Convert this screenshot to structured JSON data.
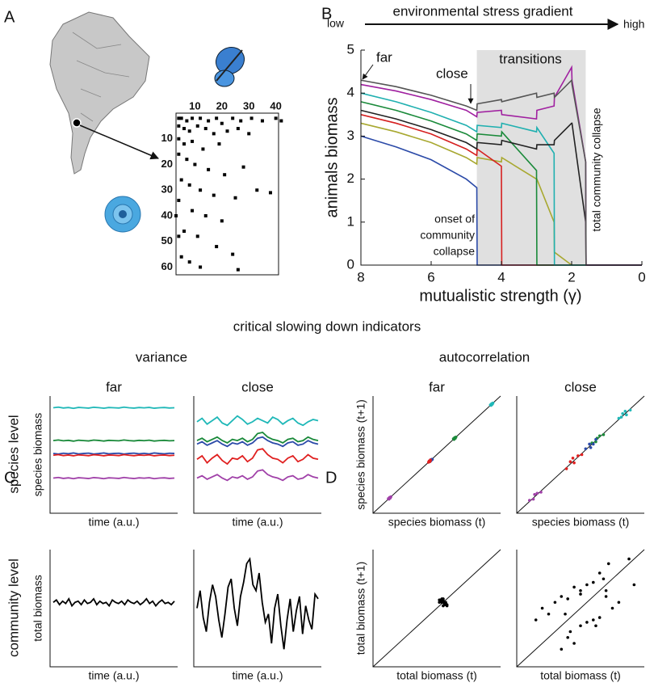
{
  "figure": {
    "panel_labels": [
      "A",
      "B",
      "C",
      "D"
    ],
    "heading": "critical slowing down indicators",
    "variance": "variance",
    "autocorrelation": "autocorrelation",
    "row_labels": [
      "species level",
      "community level"
    ]
  },
  "chart_data": [
    {
      "type": "matrix",
      "xlim": [
        3,
        41
      ],
      "ylim": [
        0,
        63
      ],
      "xticks": [
        10,
        20,
        30,
        40
      ],
      "yticks": [
        10,
        20,
        30,
        40,
        50,
        60
      ],
      "color": "#000",
      "x": [
        4,
        5,
        7,
        9,
        12,
        15,
        18,
        20,
        24,
        27,
        31,
        35,
        40,
        42,
        4,
        6,
        8,
        11,
        14,
        17,
        22,
        26,
        30,
        4,
        6,
        9,
        13,
        19,
        4,
        7,
        10,
        15,
        21,
        28,
        5,
        8,
        12,
        17,
        25,
        33,
        38,
        4,
        9,
        14,
        20,
        6,
        11,
        18,
        24,
        5,
        8,
        12,
        26,
        3,
        4
      ],
      "y": [
        2,
        2,
        3,
        2,
        2,
        3,
        2,
        4,
        2,
        3,
        2,
        3,
        2,
        3,
        5,
        6,
        7,
        5,
        6,
        8,
        7,
        6,
        8,
        10,
        12,
        11,
        14,
        12,
        16,
        18,
        20,
        22,
        24,
        21,
        26,
        28,
        30,
        32,
        33,
        30,
        31,
        34,
        38,
        40,
        42,
        46,
        48,
        52,
        55,
        56,
        58,
        60,
        61,
        40,
        48
      ]
    },
    {
      "type": "line",
      "xlabel": "mutualistic strength (γ)",
      "ylabel": "animals biomass",
      "xlim": [
        8,
        0
      ],
      "ylim": [
        0,
        5
      ],
      "xticks": [
        8,
        6,
        4,
        2,
        0
      ],
      "yticks": [
        0,
        1,
        2,
        3,
        4,
        5
      ],
      "shade": [
        4.7,
        1.6
      ],
      "gradient": {
        "label": "environmental stress gradient",
        "low": "low",
        "high": "high"
      },
      "annotations": {
        "far": "far",
        "close": "close",
        "transitions": "transitions",
        "onset": [
          "onset of",
          "community",
          "collapse"
        ],
        "total": "total community collapse"
      },
      "x": [
        8,
        7,
        6,
        5,
        4.7,
        4.69,
        4,
        3.99,
        3,
        2.99,
        2.5,
        2.49,
        2,
        1.99,
        1.6,
        1.59,
        0
      ],
      "series": [
        {
          "color": "#a8a830",
          "values": [
            3.3,
            3.1,
            2.85,
            2.5,
            2.35,
            2.5,
            2.4,
            2.5,
            2.0,
            2.0,
            1.0,
            0.3,
            0,
            0,
            0,
            0,
            0
          ]
        },
        {
          "color": "#2b4aa8",
          "values": [
            3.0,
            2.75,
            2.45,
            2.0,
            1.8,
            0,
            0,
            0,
            0,
            0,
            0,
            0,
            0,
            0,
            0,
            0,
            0
          ]
        },
        {
          "color": "#d62020",
          "values": [
            3.5,
            3.3,
            3.05,
            2.7,
            2.55,
            2.7,
            2.3,
            0,
            0,
            0,
            0,
            0,
            0,
            0,
            0,
            0,
            0
          ]
        },
        {
          "color": "#1a8a3a",
          "values": [
            3.8,
            3.6,
            3.35,
            3.05,
            2.9,
            3.05,
            3.0,
            3.1,
            2.2,
            0,
            0,
            0,
            0,
            0,
            0,
            0,
            0
          ]
        },
        {
          "color": "#20b0b0",
          "values": [
            4.0,
            3.8,
            3.55,
            3.25,
            3.1,
            3.25,
            3.2,
            3.3,
            3.1,
            3.2,
            2.6,
            0,
            0,
            0,
            0,
            0,
            0
          ]
        },
        {
          "color": "#222222",
          "values": [
            3.6,
            3.4,
            3.15,
            2.85,
            2.7,
            2.85,
            2.8,
            2.9,
            2.7,
            2.8,
            2.8,
            2.9,
            3.3,
            3.3,
            1.0,
            0,
            0
          ]
        },
        {
          "color": "#a020a0",
          "values": [
            4.2,
            4.05,
            3.85,
            3.6,
            3.45,
            3.55,
            3.6,
            3.5,
            3.4,
            3.6,
            3.7,
            3.9,
            4.6,
            4.3,
            2.4,
            0,
            0
          ]
        },
        {
          "color": "#555555",
          "values": [
            4.3,
            4.15,
            3.95,
            3.7,
            3.6,
            3.75,
            3.85,
            3.8,
            4.0,
            3.9,
            4.0,
            3.9,
            4.3,
            4.2,
            2.4,
            0,
            0
          ]
        }
      ]
    },
    {
      "type": "line",
      "title": "far",
      "xlabel": "time (a.u.)",
      "ylabel": "species biomass",
      "ylim": [
        0,
        10
      ],
      "series": [
        {
          "color": "#20b8b8",
          "values": [
            9.0,
            9.05,
            8.98,
            9.02,
            8.95,
            9.03,
            9.0,
            8.97,
            9.04,
            9.01,
            8.96,
            9.02,
            9.0,
            8.98,
            9.05,
            9.0,
            8.97,
            9.02,
            8.99,
            9.03,
            8.96,
            9.0,
            9.02,
            8.98,
            9.0
          ]
        },
        {
          "color": "#1a8a3a",
          "values": [
            6.2,
            6.25,
            6.18,
            6.22,
            6.15,
            6.23,
            6.2,
            6.17,
            6.24,
            6.21,
            6.16,
            6.22,
            6.2,
            6.18,
            6.25,
            6.2,
            6.17,
            6.22,
            6.19,
            6.23,
            6.16,
            6.2,
            6.22,
            6.18,
            6.2
          ]
        },
        {
          "color": "#2b4aa8",
          "values": [
            5.1,
            5.05,
            5.12,
            5.08,
            5.14,
            5.06,
            5.1,
            5.13,
            5.05,
            5.09,
            5.14,
            5.07,
            5.1,
            5.12,
            5.05,
            5.1,
            5.13,
            5.07,
            5.11,
            5.06,
            5.14,
            5.1,
            5.07,
            5.12,
            5.1
          ]
        },
        {
          "color": "#e02020",
          "values": [
            4.95,
            5.0,
            4.92,
            4.97,
            4.9,
            4.98,
            4.95,
            4.91,
            4.99,
            4.96,
            4.9,
            4.97,
            4.95,
            4.92,
            5.0,
            4.95,
            4.91,
            4.97,
            4.94,
            4.98,
            4.9,
            4.95,
            4.97,
            4.92,
            4.95
          ]
        },
        {
          "color": "#a040a8",
          "values": [
            3.0,
            3.05,
            2.97,
            3.02,
            2.95,
            3.03,
            3.0,
            2.96,
            3.04,
            3.01,
            2.95,
            3.02,
            3.0,
            2.97,
            3.05,
            3.0,
            2.96,
            3.02,
            2.99,
            3.03,
            2.95,
            3.0,
            3.02,
            2.97,
            3.0
          ]
        }
      ]
    },
    {
      "type": "line",
      "title": "close",
      "xlabel": "time (a.u.)",
      "ylim": [
        0,
        10
      ],
      "series": [
        {
          "color": "#20b8b8",
          "values": [
            7.8,
            8.1,
            7.6,
            7.9,
            8.2,
            7.7,
            7.5,
            7.9,
            8.3,
            8.0,
            7.6,
            7.8,
            8.1,
            7.9,
            7.7,
            8.2,
            8.0,
            7.6,
            7.9,
            8.1,
            7.7,
            7.5,
            7.8,
            8.0,
            7.9
          ]
        },
        {
          "color": "#2b4aa8",
          "values": [
            5.9,
            6.1,
            5.8,
            6.0,
            6.2,
            5.9,
            5.7,
            6.0,
            5.9,
            6.1,
            5.8,
            6.0,
            6.4,
            6.5,
            6.2,
            6.0,
            5.9,
            5.7,
            6.0,
            6.1,
            5.8,
            5.9,
            6.2,
            6.0,
            5.9
          ]
        },
        {
          "color": "#1a8a3a",
          "values": [
            6.2,
            6.4,
            6.1,
            6.3,
            6.5,
            6.2,
            6.0,
            6.3,
            6.2,
            6.4,
            6.1,
            6.3,
            6.8,
            6.9,
            6.5,
            6.3,
            6.2,
            6.0,
            6.3,
            6.4,
            6.1,
            6.2,
            6.5,
            6.3,
            6.2
          ]
        },
        {
          "color": "#e02020",
          "values": [
            4.6,
            4.9,
            4.3,
            4.7,
            5.0,
            4.5,
            4.2,
            4.7,
            4.6,
            4.9,
            4.4,
            4.7,
            5.4,
            5.5,
            5.0,
            4.7,
            4.6,
            4.3,
            4.7,
            4.9,
            4.4,
            4.6,
            5.0,
            4.7,
            4.6
          ]
        },
        {
          "color": "#a040a8",
          "values": [
            3.0,
            3.2,
            2.9,
            3.1,
            3.3,
            3.0,
            2.8,
            3.1,
            3.0,
            3.2,
            2.9,
            3.1,
            3.6,
            3.7,
            3.3,
            3.1,
            3.0,
            2.8,
            3.1,
            3.2,
            2.9,
            3.0,
            3.3,
            3.1,
            3.0
          ]
        }
      ]
    },
    {
      "type": "line",
      "xlabel": "time (a.u.)",
      "ylabel": "total biomass",
      "ylim": [
        0,
        10
      ],
      "series": [
        {
          "color": "#000",
          "values": [
            5.5,
            5.7,
            5.3,
            5.6,
            5.4,
            5.8,
            5.2,
            5.5,
            5.6,
            5.3,
            5.7,
            5.4,
            5.5,
            5.8,
            5.3,
            5.6,
            5.4,
            5.5,
            5.2,
            5.7,
            5.5,
            5.4,
            5.6,
            5.3,
            5.7,
            5.5,
            5.4,
            5.6,
            5.3,
            5.5,
            5.8,
            5.4,
            5.6,
            5.2,
            5.5,
            5.7,
            5.4,
            5.5,
            5.3,
            5.6
          ]
        }
      ]
    },
    {
      "type": "line",
      "xlabel": "time (a.u.)",
      "ylim": [
        0,
        10
      ],
      "series": [
        {
          "color": "#000",
          "values": [
            5.0,
            6.5,
            4.2,
            3.0,
            5.5,
            7.0,
            6.0,
            4.0,
            2.5,
            4.5,
            6.8,
            7.5,
            5.0,
            3.5,
            6.0,
            7.2,
            8.8,
            9.2,
            7.0,
            6.5,
            8.0,
            5.5,
            3.8,
            4.5,
            2.0,
            5.0,
            6.2,
            3.5,
            1.5,
            4.0,
            5.8,
            3.0,
            4.8,
            6.0,
            2.8,
            5.2,
            4.0,
            3.2,
            6.2,
            5.8
          ]
        }
      ]
    },
    {
      "type": "scatter",
      "title": "far",
      "xlabel": "species biomass (t)",
      "ylabel": "species biomass (t+1)",
      "xlim": [
        0,
        10
      ],
      "ylim": [
        0,
        10
      ],
      "diagonal": true,
      "series": [
        {
          "color": "#20b8b8",
          "x": [
            9.2,
            9.3,
            9.35,
            9.25,
            9.4
          ],
          "y": [
            9.25,
            9.35,
            9.3,
            9.2,
            9.4
          ]
        },
        {
          "color": "#1a8a3a",
          "x": [
            6.3,
            6.4,
            6.45,
            6.35,
            6.5
          ],
          "y": [
            6.35,
            6.45,
            6.4,
            6.3,
            6.5
          ]
        },
        {
          "color": "#2b4aa8",
          "x": [
            4.5,
            4.55,
            4.6,
            4.5,
            4.65
          ],
          "y": [
            4.55,
            4.5,
            4.6,
            4.45,
            4.6
          ]
        },
        {
          "color": "#e02020",
          "x": [
            4.4,
            4.45,
            4.5,
            4.35,
            4.5
          ],
          "y": [
            4.45,
            4.4,
            4.5,
            4.35,
            4.55
          ]
        },
        {
          "color": "#a040a8",
          "x": [
            1.2,
            1.3,
            1.35,
            1.25,
            1.4
          ],
          "y": [
            1.25,
            1.35,
            1.3,
            1.2,
            1.4
          ]
        }
      ]
    },
    {
      "type": "scatter",
      "title": "close",
      "xlabel": "species biomass (t)",
      "xlim": [
        0,
        10
      ],
      "ylim": [
        0,
        10
      ],
      "diagonal": true,
      "series": [
        {
          "color": "#20b8b8",
          "x": [
            8.0,
            8.3,
            8.6,
            8.9,
            8.5,
            8.2
          ],
          "y": [
            8.1,
            8.5,
            8.4,
            8.8,
            8.7,
            8.2
          ]
        },
        {
          "color": "#1a8a3a",
          "x": [
            5.9,
            6.2,
            6.5,
            6.8,
            6.3
          ],
          "y": [
            6.0,
            6.1,
            6.6,
            6.7,
            6.4
          ]
        },
        {
          "color": "#2b4aa8",
          "x": [
            5.4,
            5.7,
            6.0,
            6.2,
            5.8
          ],
          "y": [
            5.5,
            5.9,
            5.9,
            6.3,
            5.6
          ]
        },
        {
          "color": "#e02020",
          "x": [
            3.9,
            4.2,
            4.5,
            4.8,
            5.1,
            4.4
          ],
          "y": [
            3.8,
            4.4,
            4.3,
            4.9,
            5.0,
            4.7
          ]
        },
        {
          "color": "#a040a8",
          "x": [
            1.0,
            1.3,
            1.6,
            1.9,
            1.4
          ],
          "y": [
            1.1,
            1.2,
            1.7,
            1.8,
            1.6
          ]
        }
      ]
    },
    {
      "type": "scatter",
      "xlabel": "total biomass (t)",
      "ylabel": "total biomass (t+1)",
      "xlim": [
        0,
        10
      ],
      "ylim": [
        0,
        10
      ],
      "diagonal": true,
      "series": [
        {
          "color": "#000",
          "x": [
            5.5,
            5.7,
            5.3,
            5.6,
            5.4,
            5.8,
            5.2,
            5.5,
            5.6,
            5.3,
            5.7,
            5.4,
            5.5,
            5.8,
            5.3,
            5.6,
            5.4,
            5.5,
            5.2,
            5.7
          ],
          "y": [
            5.7,
            5.3,
            5.6,
            5.4,
            5.8,
            5.2,
            5.5,
            5.6,
            5.3,
            5.7,
            5.4,
            5.5,
            5.8,
            5.3,
            5.6,
            5.4,
            5.5,
            5.2,
            5.7,
            5.5
          ]
        }
      ]
    },
    {
      "type": "scatter",
      "xlabel": "total biomass (t)",
      "xlim": [
        0,
        10
      ],
      "ylim": [
        0,
        10
      ],
      "diagonal": true,
      "series": [
        {
          "color": "#000",
          "x": [
            5.0,
            6.5,
            4.2,
            3.0,
            5.5,
            7.0,
            6.0,
            4.0,
            2.5,
            4.5,
            6.8,
            7.5,
            5.0,
            3.5,
            6.0,
            7.2,
            8.8,
            9.2,
            7.0,
            6.5,
            8.0,
            5.5,
            3.8,
            4.5,
            2.0,
            5.0,
            6.2,
            3.5,
            1.5,
            4.0
          ],
          "y": [
            6.5,
            4.2,
            3.0,
            5.5,
            7.0,
            6.0,
            4.0,
            2.5,
            4.5,
            6.8,
            7.5,
            5.0,
            3.5,
            6.0,
            7.2,
            8.8,
            9.2,
            7.0,
            6.5,
            8.0,
            5.5,
            3.8,
            4.5,
            2.0,
            5.0,
            6.2,
            3.5,
            1.5,
            4.0,
            5.8
          ]
        }
      ]
    }
  ]
}
